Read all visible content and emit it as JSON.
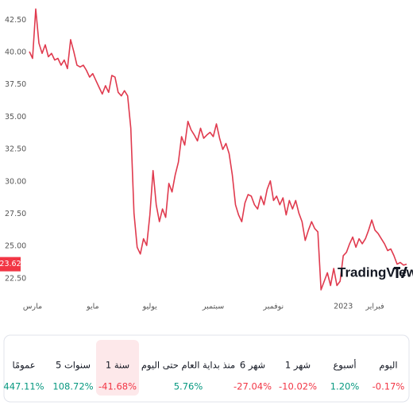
{
  "chart_data": {
    "type": "line",
    "values": [
      40.07,
      39.54,
      43.36,
      40.72,
      39.93,
      40.59,
      39.67,
      39.93,
      39.41,
      39.54,
      39.01,
      39.41,
      38.75,
      40.99,
      40.07,
      39.01,
      38.88,
      39.01,
      38.62,
      38.09,
      38.36,
      37.83,
      37.3,
      36.78,
      37.43,
      36.91,
      38.22,
      38.09,
      36.91,
      36.64,
      37.04,
      36.64,
      34.14,
      27.57,
      24.93,
      24.41,
      25.59,
      25.07,
      27.43,
      30.86,
      28.22,
      26.91,
      27.89,
      27.24,
      29.87,
      29.21,
      30.53,
      31.51,
      33.49,
      32.83,
      34.67,
      34.01,
      33.62,
      33.16,
      34.14,
      33.36,
      33.62,
      33.82,
      33.49,
      34.47,
      33.36,
      32.5,
      32.96,
      32.17,
      30.53,
      28.22,
      27.43,
      26.91,
      28.36,
      29.01,
      28.88,
      28.22,
      27.89,
      28.88,
      28.22,
      29.41,
      30.07,
      28.55,
      28.88,
      28.22,
      28.75,
      27.43,
      28.55,
      27.89,
      28.55,
      27.57,
      26.91,
      25.46,
      26.25,
      26.91,
      26.38,
      26.12,
      21.64,
      22.3,
      22.96,
      21.97,
      23.29,
      21.97,
      22.3,
      24.28,
      24.54,
      25.2,
      25.72,
      24.93,
      25.59,
      25.2,
      25.59,
      26.25,
      27.04,
      26.25,
      25.99,
      25.59,
      25.2,
      24.67,
      24.8,
      24.28,
      23.62,
      23.75,
      23.55,
      23.62
    ],
    "categories": [
      null,
      "مارس",
      null,
      null,
      null,
      null,
      null,
      null,
      null,
      null,
      null,
      null,
      null,
      null,
      null,
      null,
      null,
      null,
      null,
      null,
      "مايو",
      null,
      null,
      null,
      null,
      null,
      null,
      null,
      null,
      null,
      null,
      null,
      null,
      null,
      null,
      null,
      null,
      null,
      "يوليو",
      null,
      null,
      null,
      null,
      null,
      null,
      null,
      null,
      null,
      null,
      null,
      null,
      null,
      null,
      null,
      null,
      null,
      null,
      null,
      "سبتمبر",
      null,
      null,
      null,
      null,
      null,
      null,
      null,
      null,
      null,
      null,
      null,
      null,
      null,
      null,
      null,
      null,
      null,
      null,
      "نوفمبر",
      null,
      null,
      null,
      null,
      null,
      null,
      null,
      null,
      null,
      null,
      null,
      null,
      null,
      null,
      null,
      null,
      null,
      null,
      null,
      null,
      null,
      "2023",
      null,
      null,
      null,
      null,
      null,
      null,
      null,
      null,
      null,
      "فبراير",
      null,
      null,
      null,
      null,
      null,
      null,
      null,
      null,
      null,
      null
    ],
    "color": "#e03a4e",
    "ylim": [
      22.0,
      43.75
    ],
    "yticks": [
      {
        "value": 22.5,
        "label": "22.50"
      },
      {
        "value": 25,
        "label": "25.00"
      },
      {
        "value": 27.5,
        "label": "27.50"
      },
      {
        "value": 30,
        "label": "30.00"
      },
      {
        "value": 32.5,
        "label": "32.50"
      },
      {
        "value": 35,
        "label": "35.00"
      },
      {
        "value": 37.5,
        "label": "37.50"
      },
      {
        "value": 40,
        "label": "40.00"
      },
      {
        "value": 42.5,
        "label": "42.50"
      }
    ],
    "watermark": "TradingView"
  },
  "performance": [
    {
      "period": "اليوم",
      "change": "-0.17%",
      "color": "#f23645"
    },
    {
      "period": "أسبوع",
      "change": "1.20%",
      "color": "#089981"
    },
    {
      "period": "1 شهر",
      "change": "-10.02%",
      "color": "#f23645"
    },
    {
      "period": "6 شهر",
      "change": "-27.04%",
      "color": "#f23645"
    },
    {
      "period": "منذ بداية العام حتى اليوم",
      "change": "5.76%",
      "color": "#089981"
    },
    {
      "period": "1 سنة",
      "change": "-41.68%",
      "color": "#f23645",
      "selected": true
    },
    {
      "period": "5 سنوات",
      "change": "108.72%",
      "color": "#089981"
    },
    {
      "period": "عمومًا",
      "change": "447.11%",
      "color": "#089981"
    }
  ]
}
